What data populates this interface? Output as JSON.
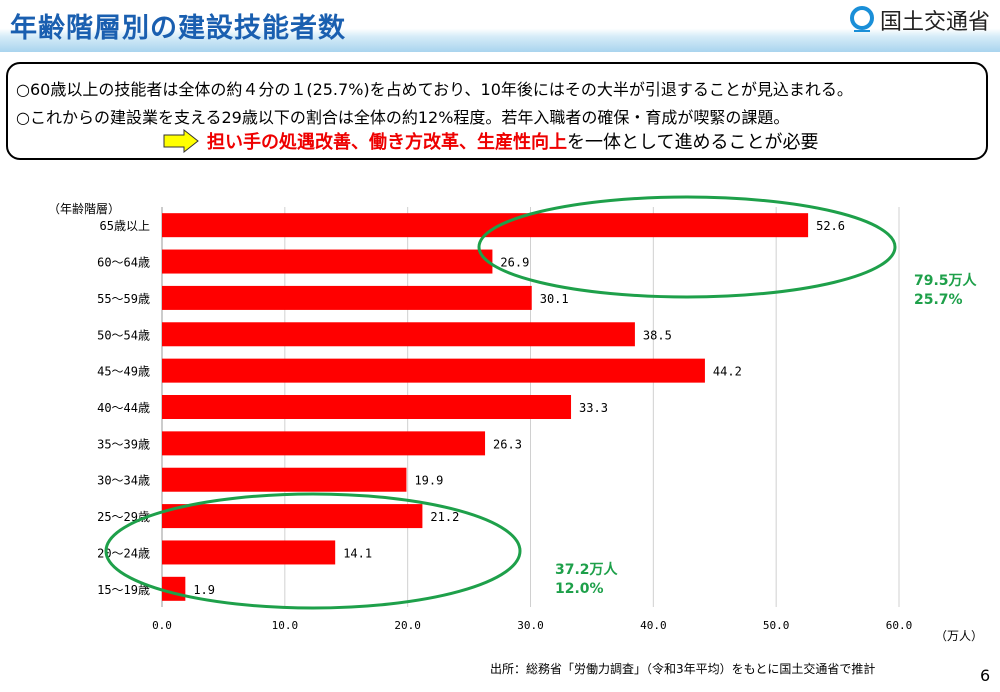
{
  "header": {
    "title": "年齢階層別の建設技能者数",
    "logo_text": "国土交通省"
  },
  "summary": {
    "line1": "○60歳以上の技能者は全体の約４分の１(25.7%)を占めており、10年後にはその大半が引退することが見込まれる。",
    "line2": "○これからの建設業を支える29歳以下の割合は全体の約12%程度。若年入職者の確保・育成が喫緊の課題。",
    "line3_red": "担い手の処遇改善、働き方改革、生産性向上",
    "line3_rest": "を一体として進めることが必要"
  },
  "annotations": {
    "upper": [
      "79.5万人",
      "25.7%"
    ],
    "lower": [
      "37.2万人",
      "12.0%"
    ]
  },
  "source": "出所：総務省「労働力調査」（令和3年平均）をもとに国土交通省で推計",
  "page_number": "6",
  "chart_data": {
    "type": "bar",
    "orientation": "horizontal",
    "ylabel": "（年齢階層）",
    "xlabel": "（万人）",
    "categories": [
      "65歳以上",
      "60～64歳",
      "55～59歳",
      "50～54歳",
      "45～49歳",
      "40～44歳",
      "35～39歳",
      "30～34歳",
      "25～29歳",
      "20～24歳",
      "15～19歳"
    ],
    "values": [
      52.6,
      26.9,
      30.1,
      38.5,
      44.2,
      33.3,
      26.3,
      19.9,
      21.2,
      14.1,
      1.9
    ],
    "xlim": [
      0,
      60
    ],
    "xticks": [
      "0.0",
      "10.0",
      "20.0",
      "30.0",
      "40.0",
      "50.0",
      "60.0"
    ],
    "grid": true,
    "bar_color": "#ff0000",
    "highlight_color": "#1ea04a"
  }
}
